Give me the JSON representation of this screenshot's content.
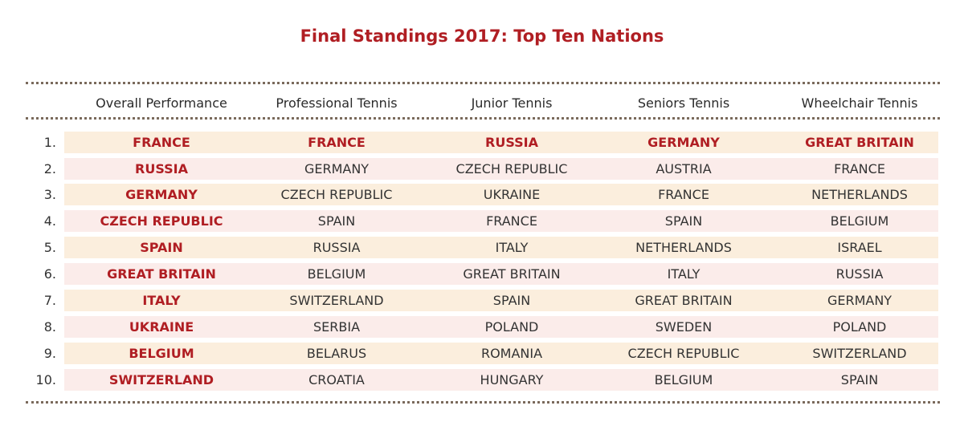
{
  "title": "Final Standings 2017: Top Ten Nations",
  "columns": [
    "Overall Performance",
    "Professional Tennis",
    "Junior Tennis",
    "Seniors Tennis",
    "Wheelchair Tennis"
  ],
  "colors": {
    "accent": "#b01e23",
    "row_odd": "#fbeedd",
    "row_even": "#fbecea",
    "divider": "#7a6a5c"
  },
  "rows": [
    {
      "rank": "1.",
      "cells": [
        "FRANCE",
        "FRANCE",
        "RUSSIA",
        "GERMANY",
        "GREAT BRITAIN"
      ]
    },
    {
      "rank": "2.",
      "cells": [
        "RUSSIA",
        "GERMANY",
        "CZECH REPUBLIC",
        "AUSTRIA",
        "FRANCE"
      ]
    },
    {
      "rank": "3.",
      "cells": [
        "GERMANY",
        "CZECH REPUBLIC",
        "UKRAINE",
        "FRANCE",
        "NETHERLANDS"
      ]
    },
    {
      "rank": "4.",
      "cells": [
        "CZECH REPUBLIC",
        "SPAIN",
        "FRANCE",
        "SPAIN",
        "BELGIUM"
      ]
    },
    {
      "rank": "5.",
      "cells": [
        "SPAIN",
        "RUSSIA",
        "ITALY",
        "NETHERLANDS",
        "ISRAEL"
      ]
    },
    {
      "rank": "6.",
      "cells": [
        "GREAT BRITAIN",
        "BELGIUM",
        "GREAT BRITAIN",
        "ITALY",
        "RUSSIA"
      ]
    },
    {
      "rank": "7.",
      "cells": [
        "ITALY",
        "SWITZERLAND",
        "SPAIN",
        "GREAT BRITAIN",
        "GERMANY"
      ]
    },
    {
      "rank": "8.",
      "cells": [
        "UKRAINE",
        "SERBIA",
        "POLAND",
        "SWEDEN",
        "POLAND"
      ]
    },
    {
      "rank": "9.",
      "cells": [
        "BELGIUM",
        "BELARUS",
        "ROMANIA",
        "CZECH REPUBLIC",
        "SWITZERLAND"
      ]
    },
    {
      "rank": "10.",
      "cells": [
        "SWITZERLAND",
        "CROATIA",
        "HUNGARY",
        "BELGIUM",
        "SPAIN"
      ]
    }
  ]
}
